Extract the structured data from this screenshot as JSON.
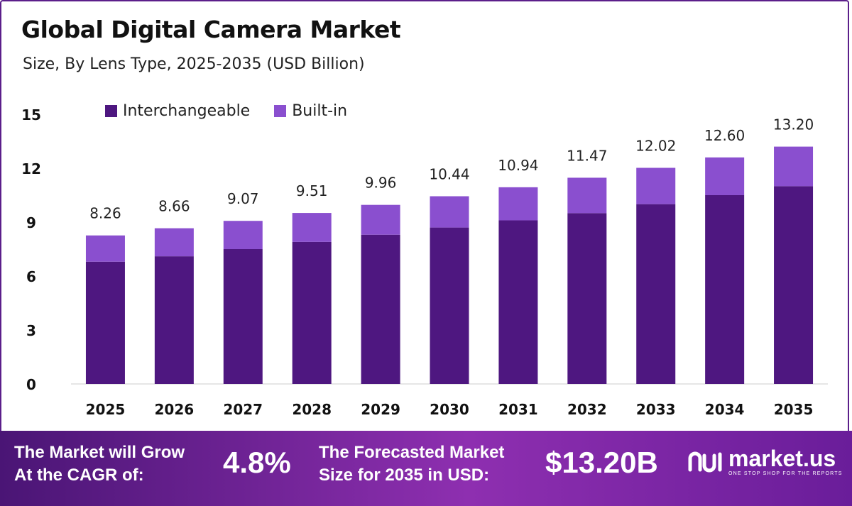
{
  "title": "Global Digital Camera Market",
  "subtitle": "Size, By Lens Type, 2025-2035 (USD Billion)",
  "colors": {
    "interchangeable": "#4e1780",
    "built_in": "#8a4fcf",
    "border": "#5b1f8a"
  },
  "chart_data": {
    "type": "bar",
    "stacked": true,
    "categories": [
      "2025",
      "2026",
      "2027",
      "2028",
      "2029",
      "2030",
      "2031",
      "2032",
      "2033",
      "2034",
      "2035"
    ],
    "series": [
      {
        "name": "Interchangeable",
        "values": [
          6.8,
          7.1,
          7.5,
          7.9,
          8.3,
          8.7,
          9.1,
          9.5,
          10.0,
          10.5,
          11.0
        ]
      },
      {
        "name": "Built-in",
        "values": [
          1.46,
          1.56,
          1.57,
          1.61,
          1.66,
          1.74,
          1.84,
          1.97,
          2.02,
          2.1,
          2.2
        ]
      }
    ],
    "totals": [
      "8.26",
      "8.66",
      "9.07",
      "9.51",
      "9.96",
      "10.44",
      "10.94",
      "11.47",
      "12.02",
      "12.60",
      "13.20"
    ],
    "yticks": [
      "0",
      "3",
      "6",
      "9",
      "12",
      "15"
    ],
    "ylim": [
      0,
      15
    ],
    "legend_position": "top-left",
    "grid": false
  },
  "footer": {
    "cagr_label_line1": "The Market will Grow",
    "cagr_label_line2": "At the CAGR of:",
    "cagr_value": "4.8%",
    "forecast_label_line1": "The Forecasted Market",
    "forecast_label_line2": "Size for 2035 in USD:",
    "forecast_value": "$13.20B",
    "brand_name": "market.us",
    "brand_tagline": "ONE STOP SHOP FOR THE REPORTS",
    "brand_icon": "market-us-logo-icon"
  }
}
